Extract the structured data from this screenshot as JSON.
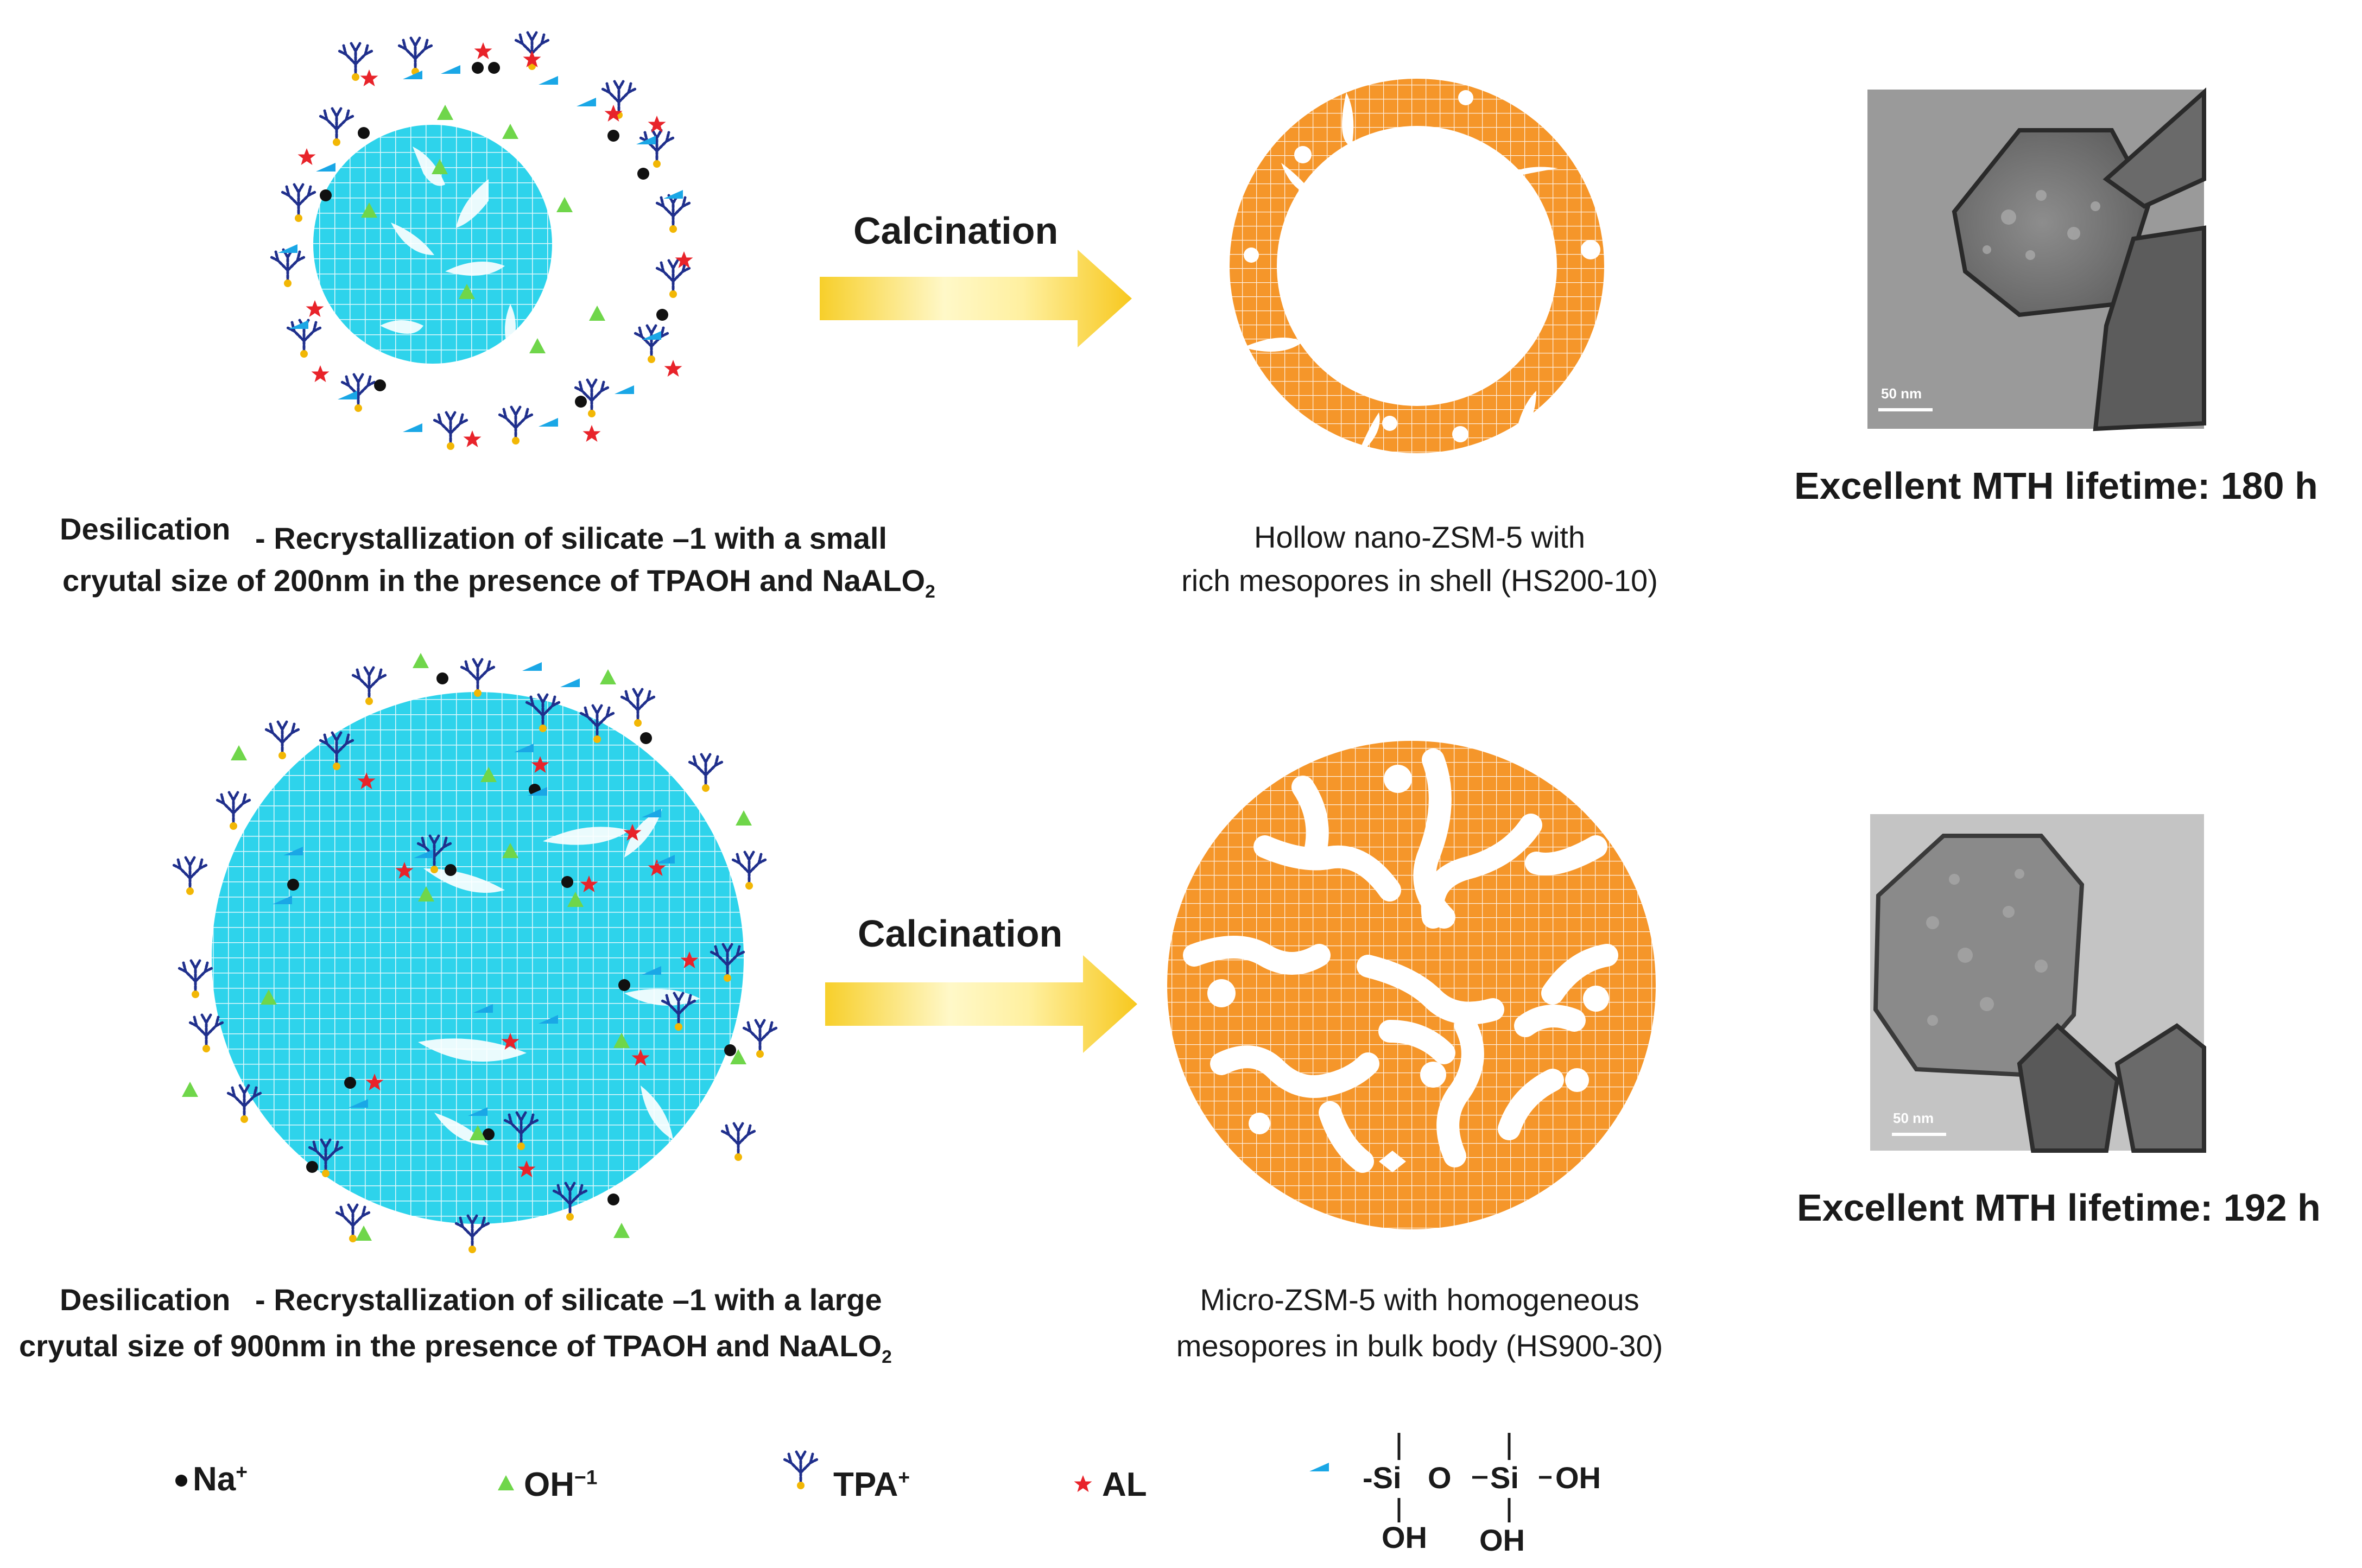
{
  "figure": {
    "row1": {
      "left_caption_a": "Desilication",
      "left_caption_b": "- Recrystallization of silicate –1 with a small",
      "left_caption_c": "cryutal size of 200nm in the presence of  TPAOH and NaALO",
      "left_caption_c_sub": "2",
      "arrow_label": "Calcination",
      "mid_caption_1": "Hollow nano-ZSM-5 with",
      "mid_caption_2": "rich mesopores in shell (HS200-10)",
      "tem_scale": "50 nm",
      "lifetime": "Excellent MTH lifetime: 180 h"
    },
    "row2": {
      "left_caption_a": "Desilication",
      "left_caption_b": "- Recrystallization of silicate –1 with a large",
      "left_caption_c": "cryutal size of 900nm in the presence of  TPAOH and NaALO",
      "left_caption_c_sub": "2",
      "arrow_label": "Calcination",
      "mid_caption_1": "Micro-ZSM-5 with homogeneous",
      "mid_caption_2": "mesopores in bulk body (HS900-30)",
      "tem_scale": "50 nm",
      "lifetime": "Excellent MTH lifetime: 192 h"
    },
    "legend": {
      "na": "Na",
      "na_sup": "+",
      "oh": "OH",
      "oh_sup": "−1",
      "tpa": "TPA",
      "tpa_sup": "+",
      "al": "AL",
      "si_left": "-Si",
      "o": "O",
      "si_right": "Si",
      "oh_right": "OH",
      "oh_below_1": "OH",
      "oh_below_2": "OH"
    },
    "colors": {
      "cyan": "#2ed3eb",
      "orange": "#f5962a",
      "navy": "#1f2f8c",
      "green": "#6fd64a",
      "red": "#e8232a",
      "gold": "#f2b705",
      "arrow_yellow": "#f7cf2a"
    }
  }
}
